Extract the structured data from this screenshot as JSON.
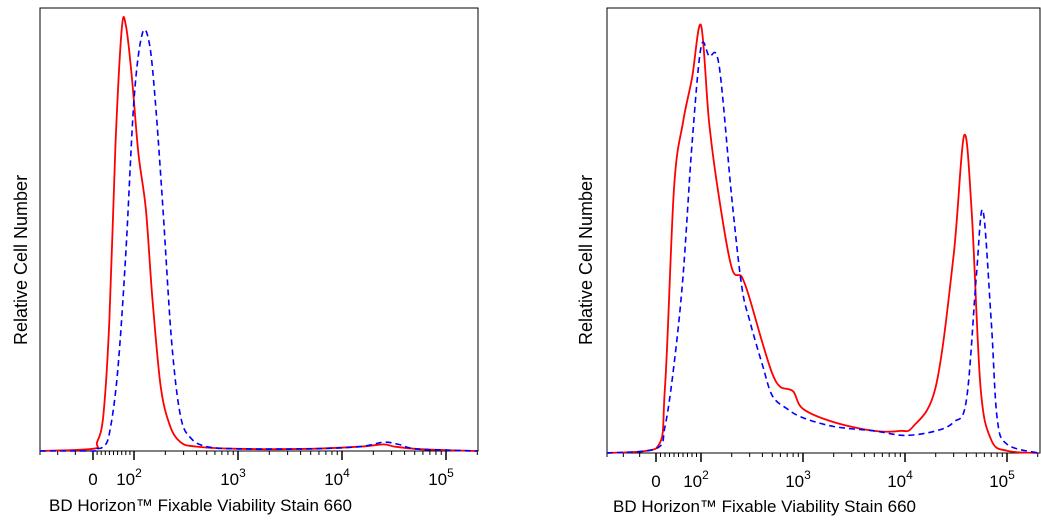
{
  "chart_data": [
    {
      "type": "line",
      "title": "",
      "xlabel": "BD Horizon™ Fixable Viability Stain 660",
      "ylabel": "Relative Cell Number",
      "x_scale": "biexponential",
      "xlim": [
        -30,
        200000
      ],
      "ylim": [
        0,
        100
      ],
      "x_ticks": [
        {
          "value": 0,
          "label": "0"
        },
        {
          "value": 100,
          "label": "10",
          "exp": "2"
        },
        {
          "value": 1000,
          "label": "10",
          "exp": "3"
        },
        {
          "value": 10000,
          "label": "10",
          "exp": "4"
        },
        {
          "value": 100000,
          "label": "10",
          "exp": "5"
        }
      ],
      "grid": false,
      "series": [
        {
          "style": "solid",
          "color": "#ff0000",
          "x": [
            -30,
            0,
            10,
            25,
            40,
            55,
            70,
            80,
            95,
            110,
            130,
            150,
            180,
            220,
            280,
            400,
            1000,
            5000,
            15000,
            25000,
            32000,
            50000,
            100000,
            200000
          ],
          "y": [
            0,
            0.5,
            2,
            8,
            30,
            70,
            96,
            97,
            85,
            68,
            55,
            35,
            15,
            6,
            2,
            1,
            0.5,
            0.5,
            1,
            1.5,
            1,
            0.5,
            0.2,
            0
          ]
        },
        {
          "style": "dashed",
          "color": "#0000ff",
          "x": [
            -30,
            0,
            10,
            25,
            40,
            60,
            80,
            100,
            120,
            140,
            160,
            190,
            230,
            280,
            350,
            500,
            1000,
            5000,
            15000,
            25000,
            35000,
            50000,
            100000,
            200000
          ],
          "y": [
            0,
            0,
            0.5,
            1,
            4,
            18,
            45,
            80,
            95,
            93,
            80,
            55,
            25,
            8,
            3,
            1,
            0.5,
            0.5,
            1,
            2,
            1.5,
            0.5,
            0.2,
            0
          ]
        }
      ]
    },
    {
      "type": "line",
      "title": "",
      "xlabel": "BD Horizon™ Fixable Viability Stain 660",
      "ylabel": "Relative Cell Number",
      "x_scale": "biexponential",
      "xlim": [
        -30,
        200000
      ],
      "ylim": [
        0,
        100
      ],
      "x_ticks": [
        {
          "value": 0,
          "label": "0"
        },
        {
          "value": 100,
          "label": "10",
          "exp": "2"
        },
        {
          "value": 1000,
          "label": "10",
          "exp": "3"
        },
        {
          "value": 10000,
          "label": "10",
          "exp": "4"
        },
        {
          "value": 100000,
          "label": "10",
          "exp": "5"
        }
      ],
      "grid": false,
      "series": [
        {
          "style": "solid",
          "color": "#ff0000",
          "x": [
            -30,
            0,
            20,
            40,
            60,
            80,
            100,
            120,
            150,
            200,
            250,
            300,
            400,
            500,
            600,
            800,
            1000,
            2000,
            5000,
            9000,
            12000,
            20000,
            30000,
            38000,
            45000,
            55000,
            70000,
            100000,
            200000
          ],
          "y": [
            0,
            1,
            15,
            60,
            75,
            85,
            97,
            75,
            58,
            42,
            40,
            35,
            25,
            18,
            15,
            14,
            10,
            7,
            5,
            5,
            6,
            15,
            45,
            72,
            55,
            15,
            3,
            0.5,
            0
          ]
        },
        {
          "style": "dashed",
          "color": "#0000ff",
          "x": [
            -30,
            0,
            20,
            40,
            60,
            80,
            100,
            120,
            150,
            200,
            250,
            300,
            400,
            500,
            700,
            1000,
            2000,
            5000,
            10000,
            20000,
            30000,
            40000,
            50000,
            58000,
            70000,
            80000,
            100000,
            200000
          ],
          "y": [
            0,
            1,
            6,
            20,
            40,
            70,
            92,
            90,
            88,
            58,
            38,
            30,
            20,
            13,
            10,
            8,
            6,
            5,
            4,
            5,
            7,
            12,
            40,
            55,
            30,
            8,
            2,
            0
          ]
        }
      ]
    }
  ]
}
